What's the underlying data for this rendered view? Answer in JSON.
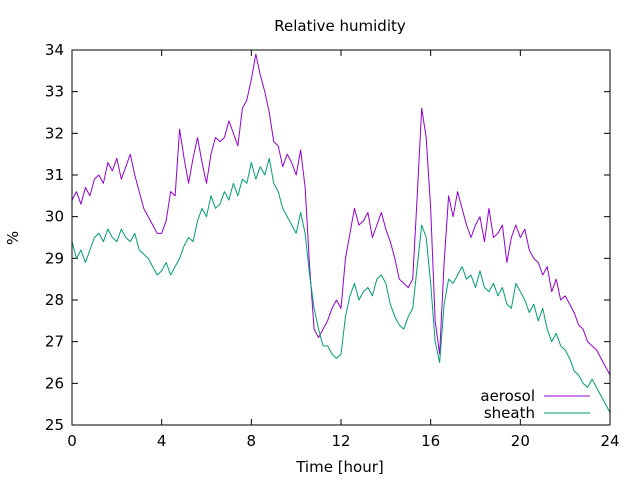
{
  "chart_data": {
    "type": "line",
    "title": "Relative humidity",
    "xlabel": "Time [hour]",
    "ylabel": "%",
    "xlim": [
      0,
      24
    ],
    "ylim": [
      25,
      34
    ],
    "xticks": [
      0,
      4,
      8,
      12,
      16,
      20,
      24
    ],
    "yticks": [
      25,
      26,
      27,
      28,
      29,
      30,
      31,
      32,
      33,
      34
    ],
    "grid": false,
    "legend_position": "bottom-right",
    "series": [
      {
        "name": "aerosol",
        "color": "#9400d3",
        "points": [
          [
            0.0,
            30.4
          ],
          [
            0.2,
            30.6
          ],
          [
            0.4,
            30.3
          ],
          [
            0.6,
            30.7
          ],
          [
            0.8,
            30.5
          ],
          [
            1.0,
            30.9
          ],
          [
            1.2,
            31.0
          ],
          [
            1.4,
            30.8
          ],
          [
            1.6,
            31.3
          ],
          [
            1.8,
            31.1
          ],
          [
            2.0,
            31.4
          ],
          [
            2.2,
            30.9
          ],
          [
            2.4,
            31.2
          ],
          [
            2.6,
            31.5
          ],
          [
            2.8,
            31.0
          ],
          [
            3.0,
            30.6
          ],
          [
            3.2,
            30.2
          ],
          [
            3.4,
            30.0
          ],
          [
            3.6,
            29.8
          ],
          [
            3.8,
            29.6
          ],
          [
            4.0,
            29.6
          ],
          [
            4.2,
            29.9
          ],
          [
            4.4,
            30.6
          ],
          [
            4.6,
            30.5
          ],
          [
            4.8,
            32.1
          ],
          [
            5.0,
            31.4
          ],
          [
            5.2,
            30.8
          ],
          [
            5.4,
            31.4
          ],
          [
            5.6,
            31.9
          ],
          [
            5.8,
            31.3
          ],
          [
            6.0,
            30.8
          ],
          [
            6.2,
            31.5
          ],
          [
            6.4,
            31.9
          ],
          [
            6.6,
            31.8
          ],
          [
            6.8,
            31.9
          ],
          [
            7.0,
            32.3
          ],
          [
            7.2,
            32.0
          ],
          [
            7.4,
            31.7
          ],
          [
            7.6,
            32.6
          ],
          [
            7.8,
            32.8
          ],
          [
            8.0,
            33.3
          ],
          [
            8.2,
            33.9
          ],
          [
            8.4,
            33.4
          ],
          [
            8.6,
            33.0
          ],
          [
            8.8,
            32.5
          ],
          [
            9.0,
            31.8
          ],
          [
            9.2,
            31.7
          ],
          [
            9.4,
            31.2
          ],
          [
            9.6,
            31.5
          ],
          [
            9.8,
            31.3
          ],
          [
            10.0,
            31.0
          ],
          [
            10.2,
            31.6
          ],
          [
            10.4,
            30.7
          ],
          [
            10.6,
            28.8
          ],
          [
            10.8,
            27.3
          ],
          [
            11.0,
            27.1
          ],
          [
            11.2,
            27.3
          ],
          [
            11.4,
            27.5
          ],
          [
            11.6,
            27.8
          ],
          [
            11.8,
            28.0
          ],
          [
            12.0,
            27.8
          ],
          [
            12.2,
            29.0
          ],
          [
            12.4,
            29.6
          ],
          [
            12.6,
            30.2
          ],
          [
            12.8,
            29.8
          ],
          [
            13.0,
            29.9
          ],
          [
            13.2,
            30.1
          ],
          [
            13.4,
            29.5
          ],
          [
            13.6,
            29.8
          ],
          [
            13.8,
            30.1
          ],
          [
            14.0,
            29.7
          ],
          [
            14.2,
            29.4
          ],
          [
            14.4,
            29.0
          ],
          [
            14.6,
            28.5
          ],
          [
            14.8,
            28.4
          ],
          [
            15.0,
            28.3
          ],
          [
            15.2,
            28.5
          ],
          [
            15.4,
            30.5
          ],
          [
            15.6,
            32.6
          ],
          [
            15.8,
            31.9
          ],
          [
            16.0,
            30.2
          ],
          [
            16.2,
            27.5
          ],
          [
            16.4,
            26.7
          ],
          [
            16.6,
            28.9
          ],
          [
            16.8,
            30.5
          ],
          [
            17.0,
            30.0
          ],
          [
            17.2,
            30.6
          ],
          [
            17.4,
            30.2
          ],
          [
            17.6,
            29.8
          ],
          [
            17.8,
            29.5
          ],
          [
            18.0,
            29.8
          ],
          [
            18.2,
            30.0
          ],
          [
            18.4,
            29.4
          ],
          [
            18.6,
            30.2
          ],
          [
            18.8,
            29.5
          ],
          [
            19.0,
            29.6
          ],
          [
            19.2,
            29.8
          ],
          [
            19.4,
            28.9
          ],
          [
            19.6,
            29.5
          ],
          [
            19.8,
            29.8
          ],
          [
            20.0,
            29.5
          ],
          [
            20.2,
            29.7
          ],
          [
            20.4,
            29.2
          ],
          [
            20.6,
            29.0
          ],
          [
            20.8,
            28.9
          ],
          [
            21.0,
            28.6
          ],
          [
            21.2,
            28.8
          ],
          [
            21.4,
            28.2
          ],
          [
            21.6,
            28.5
          ],
          [
            21.8,
            28.0
          ],
          [
            22.0,
            28.1
          ],
          [
            22.2,
            27.9
          ],
          [
            22.4,
            27.7
          ],
          [
            22.6,
            27.4
          ],
          [
            22.8,
            27.3
          ],
          [
            23.0,
            27.0
          ],
          [
            23.2,
            26.9
          ],
          [
            23.4,
            26.8
          ],
          [
            23.6,
            26.6
          ],
          [
            23.8,
            26.4
          ],
          [
            24.0,
            26.2
          ]
        ]
      },
      {
        "name": "sheath",
        "color": "#009e73",
        "points": [
          [
            0.0,
            29.4
          ],
          [
            0.2,
            29.0
          ],
          [
            0.4,
            29.2
          ],
          [
            0.6,
            28.9
          ],
          [
            0.8,
            29.2
          ],
          [
            1.0,
            29.5
          ],
          [
            1.2,
            29.6
          ],
          [
            1.4,
            29.4
          ],
          [
            1.6,
            29.7
          ],
          [
            1.8,
            29.5
          ],
          [
            2.0,
            29.4
          ],
          [
            2.2,
            29.7
          ],
          [
            2.4,
            29.5
          ],
          [
            2.6,
            29.4
          ],
          [
            2.8,
            29.6
          ],
          [
            3.0,
            29.2
          ],
          [
            3.2,
            29.1
          ],
          [
            3.4,
            29.0
          ],
          [
            3.6,
            28.8
          ],
          [
            3.8,
            28.6
          ],
          [
            4.0,
            28.7
          ],
          [
            4.2,
            28.9
          ],
          [
            4.4,
            28.6
          ],
          [
            4.6,
            28.8
          ],
          [
            4.8,
            29.0
          ],
          [
            5.0,
            29.3
          ],
          [
            5.2,
            29.5
          ],
          [
            5.4,
            29.4
          ],
          [
            5.6,
            29.9
          ],
          [
            5.8,
            30.2
          ],
          [
            6.0,
            30.0
          ],
          [
            6.2,
            30.5
          ],
          [
            6.4,
            30.2
          ],
          [
            6.6,
            30.3
          ],
          [
            6.8,
            30.6
          ],
          [
            7.0,
            30.4
          ],
          [
            7.2,
            30.8
          ],
          [
            7.4,
            30.5
          ],
          [
            7.6,
            30.9
          ],
          [
            7.8,
            30.8
          ],
          [
            8.0,
            31.3
          ],
          [
            8.2,
            30.9
          ],
          [
            8.4,
            31.2
          ],
          [
            8.6,
            31.0
          ],
          [
            8.8,
            31.4
          ],
          [
            9.0,
            30.8
          ],
          [
            9.2,
            30.6
          ],
          [
            9.4,
            30.2
          ],
          [
            9.6,
            30.0
          ],
          [
            9.8,
            29.8
          ],
          [
            10.0,
            29.6
          ],
          [
            10.2,
            30.1
          ],
          [
            10.4,
            29.6
          ],
          [
            10.6,
            28.6
          ],
          [
            10.8,
            27.8
          ],
          [
            11.0,
            27.3
          ],
          [
            11.2,
            26.9
          ],
          [
            11.4,
            26.9
          ],
          [
            11.6,
            26.7
          ],
          [
            11.8,
            26.6
          ],
          [
            12.0,
            26.7
          ],
          [
            12.2,
            27.6
          ],
          [
            12.4,
            28.1
          ],
          [
            12.6,
            28.4
          ],
          [
            12.8,
            28.0
          ],
          [
            13.0,
            28.2
          ],
          [
            13.2,
            28.3
          ],
          [
            13.4,
            28.1
          ],
          [
            13.6,
            28.5
          ],
          [
            13.8,
            28.6
          ],
          [
            14.0,
            28.4
          ],
          [
            14.2,
            27.9
          ],
          [
            14.4,
            27.6
          ],
          [
            14.6,
            27.4
          ],
          [
            14.8,
            27.3
          ],
          [
            15.0,
            27.6
          ],
          [
            15.2,
            27.8
          ],
          [
            15.4,
            28.8
          ],
          [
            15.6,
            29.8
          ],
          [
            15.8,
            29.5
          ],
          [
            16.0,
            28.4
          ],
          [
            16.2,
            27.0
          ],
          [
            16.4,
            26.5
          ],
          [
            16.6,
            27.9
          ],
          [
            16.8,
            28.5
          ],
          [
            17.0,
            28.4
          ],
          [
            17.2,
            28.6
          ],
          [
            17.4,
            28.8
          ],
          [
            17.6,
            28.5
          ],
          [
            17.8,
            28.6
          ],
          [
            18.0,
            28.3
          ],
          [
            18.2,
            28.7
          ],
          [
            18.4,
            28.3
          ],
          [
            18.6,
            28.2
          ],
          [
            18.8,
            28.4
          ],
          [
            19.0,
            28.1
          ],
          [
            19.2,
            28.3
          ],
          [
            19.4,
            27.9
          ],
          [
            19.6,
            27.8
          ],
          [
            19.8,
            28.4
          ],
          [
            20.0,
            28.2
          ],
          [
            20.2,
            28.0
          ],
          [
            20.4,
            27.7
          ],
          [
            20.6,
            27.9
          ],
          [
            20.8,
            27.5
          ],
          [
            21.0,
            27.8
          ],
          [
            21.2,
            27.3
          ],
          [
            21.4,
            27.0
          ],
          [
            21.6,
            27.2
          ],
          [
            21.8,
            26.9
          ],
          [
            22.0,
            26.8
          ],
          [
            22.2,
            26.6
          ],
          [
            22.4,
            26.3
          ],
          [
            22.6,
            26.2
          ],
          [
            22.8,
            26.0
          ],
          [
            23.0,
            25.9
          ],
          [
            23.2,
            26.1
          ],
          [
            23.4,
            25.9
          ],
          [
            23.6,
            25.7
          ],
          [
            23.8,
            25.5
          ],
          [
            24.0,
            25.3
          ]
        ]
      }
    ]
  }
}
